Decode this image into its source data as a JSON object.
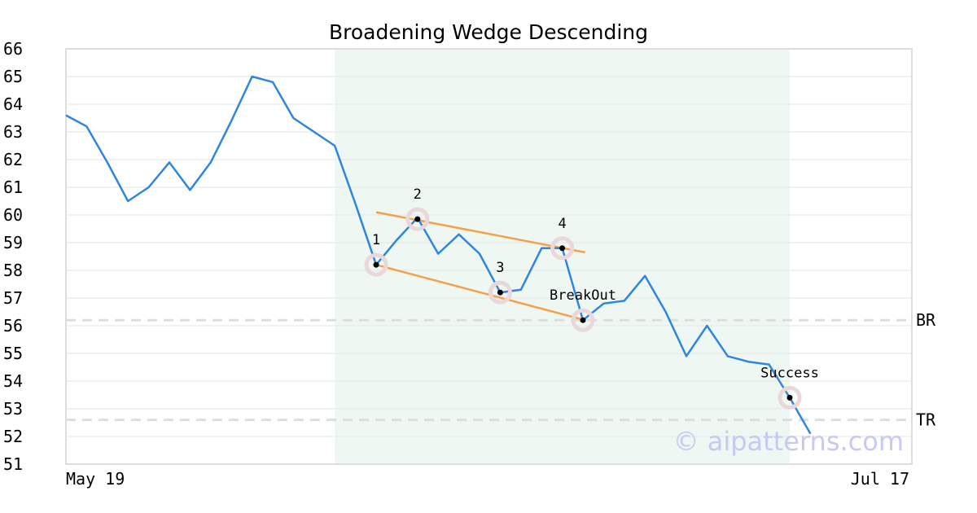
{
  "chart_data": {
    "type": "line",
    "title": "Broadening Wedge Descending",
    "xlabel": "",
    "ylabel": "",
    "ylim": [
      51,
      66
    ],
    "yticks": [
      51,
      52,
      53,
      54,
      55,
      56,
      57,
      58,
      59,
      60,
      61,
      62,
      63,
      64,
      65,
      66
    ],
    "x_tick_labels": [
      "May 19",
      "Jul 17"
    ],
    "grid": "horizontal",
    "series": [
      {
        "color": "#2e86de",
        "values": [
          63.6,
          63.2,
          61.9,
          60.5,
          61.0,
          61.9,
          60.9,
          61.9,
          63.4,
          65.0,
          64.8,
          63.5,
          63.0,
          62.5,
          60.4,
          58.2,
          59.1,
          59.9,
          58.6,
          59.3,
          58.6,
          57.2,
          57.3,
          58.8,
          58.8,
          56.2,
          56.8,
          56.9,
          57.8,
          56.5,
          54.9,
          56.0,
          54.9,
          54.7,
          54.6,
          53.4,
          52.1
        ]
      }
    ],
    "highlight_region": {
      "start_index": 13,
      "end_index": 35,
      "color": "#eef7f2"
    },
    "trendlines": [
      {
        "color": "#f5a04a",
        "from": [
          15,
          60.1
        ],
        "to": [
          25.1,
          58.65
        ]
      },
      {
        "color": "#f5a04a",
        "from": [
          15,
          58.2
        ],
        "to": [
          25.1,
          56.2
        ]
      }
    ],
    "horizontal_lines": [
      {
        "label": "BR",
        "value": 56.2,
        "color": "#dddddd"
      },
      {
        "label": "TR",
        "value": 52.6,
        "color": "#dddddd"
      }
    ],
    "annotations": [
      {
        "label": "1",
        "index": 15,
        "value": 58.2,
        "position": "above"
      },
      {
        "label": "2",
        "index": 17,
        "value": 59.85,
        "position": "above"
      },
      {
        "label": "3",
        "index": 21,
        "value": 57.2,
        "position": "above"
      },
      {
        "label": "4",
        "index": 24,
        "value": 58.8,
        "position": "above"
      },
      {
        "label": "BreakOut",
        "index": 25,
        "value": 56.2,
        "position": "above"
      },
      {
        "label": "Success",
        "index": 35,
        "value": 53.4,
        "position": "above"
      }
    ],
    "watermark": "© aipatterns.com"
  }
}
